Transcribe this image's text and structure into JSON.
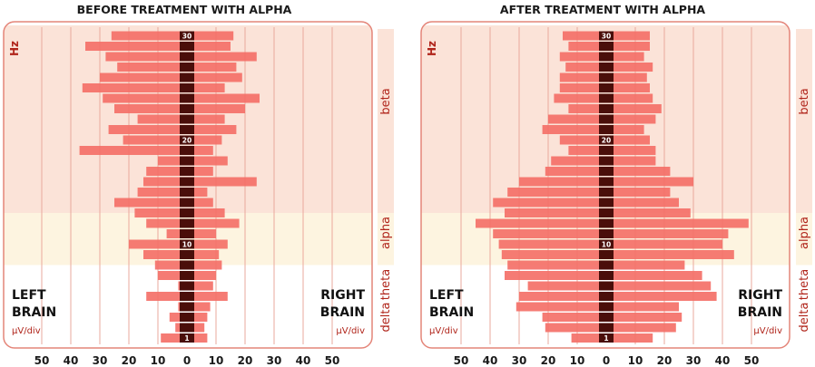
{
  "labels": {
    "hz": "Hz",
    "left_brain": [
      "LEFT",
      "BRAIN"
    ],
    "right_brain": [
      "RIGHT",
      "BRAIN"
    ],
    "unit": "µV/div"
  },
  "bands": [
    {
      "name": "beta",
      "from": 12.5,
      "to": 30.5,
      "color": "#fbe3d8"
    },
    {
      "name": "alpha",
      "from": 7.5,
      "to": 12.5,
      "color": "#fdf4e0"
    },
    {
      "name": "theta",
      "from": 3.5,
      "to": 7.5,
      "color": "#ffffff"
    },
    {
      "name": "delta",
      "from": 0.5,
      "to": 3.5,
      "color": "#ffffff"
    }
  ],
  "band_labels": [
    "beta",
    "alpha",
    "theta",
    "delta"
  ],
  "colors": {
    "bar": "#f47068",
    "freq_cell": "#4a0e0a",
    "frame": "#e48579",
    "grid": "#eaa89c"
  },
  "chart_data": [
    {
      "type": "bar",
      "title": "BEFORE TREATMENT WITH ALPHA",
      "orientation": "horizontal-butterfly",
      "frequencies": [
        1,
        2,
        3,
        4,
        5,
        6,
        7,
        8,
        9,
        10,
        11,
        12,
        13,
        14,
        15,
        16,
        17,
        18,
        19,
        20,
        21,
        22,
        23,
        24,
        25,
        26,
        27,
        28,
        29,
        30
      ],
      "frequency_labels": [
        "30",
        "20",
        "10",
        "1"
      ],
      "x_ticks": [
        50,
        40,
        30,
        20,
        10,
        0,
        10,
        20,
        30,
        40,
        50
      ],
      "xlim": [
        -50,
        50
      ],
      "series": [
        {
          "name": "LEFT BRAIN",
          "values": [
            9,
            4,
            6,
            3,
            14,
            3,
            10,
            11,
            15,
            20,
            7,
            14,
            18,
            25,
            17,
            15,
            14,
            10,
            37,
            22,
            27,
            17,
            25,
            29,
            36,
            30,
            24,
            28,
            35,
            26
          ]
        },
        {
          "name": "RIGHT BRAIN",
          "values": [
            7,
            6,
            7,
            8,
            14,
            9,
            10,
            12,
            11,
            14,
            10,
            18,
            13,
            9,
            7,
            24,
            9,
            14,
            9,
            12,
            17,
            13,
            20,
            25,
            13,
            19,
            17,
            24,
            15,
            16
          ]
        }
      ]
    },
    {
      "type": "bar",
      "title": "AFTER TREATMENT WITH ALPHA",
      "orientation": "horizontal-butterfly",
      "frequencies": [
        1,
        2,
        3,
        4,
        5,
        6,
        7,
        8,
        9,
        10,
        11,
        12,
        13,
        14,
        15,
        16,
        17,
        18,
        19,
        20,
        21,
        22,
        23,
        24,
        25,
        26,
        27,
        28,
        29,
        30
      ],
      "frequency_labels": [
        "30",
        "20",
        "10",
        "1"
      ],
      "x_ticks": [
        50,
        40,
        30,
        20,
        10,
        0,
        10,
        20,
        30,
        40,
        50
      ],
      "xlim": [
        -50,
        50
      ],
      "series": [
        {
          "name": "LEFT BRAIN",
          "values": [
            12,
            21,
            22,
            31,
            30,
            27,
            35,
            34,
            36,
            37,
            39,
            45,
            35,
            39,
            34,
            30,
            21,
            19,
            13,
            16,
            22,
            20,
            13,
            18,
            16,
            16,
            14,
            16,
            13,
            15
          ]
        },
        {
          "name": "RIGHT BRAIN",
          "values": [
            16,
            24,
            26,
            25,
            38,
            36,
            33,
            27,
            44,
            40,
            42,
            49,
            29,
            25,
            22,
            30,
            22,
            17,
            17,
            15,
            13,
            17,
            19,
            16,
            15,
            14,
            16,
            13,
            15,
            15
          ]
        }
      ]
    }
  ]
}
